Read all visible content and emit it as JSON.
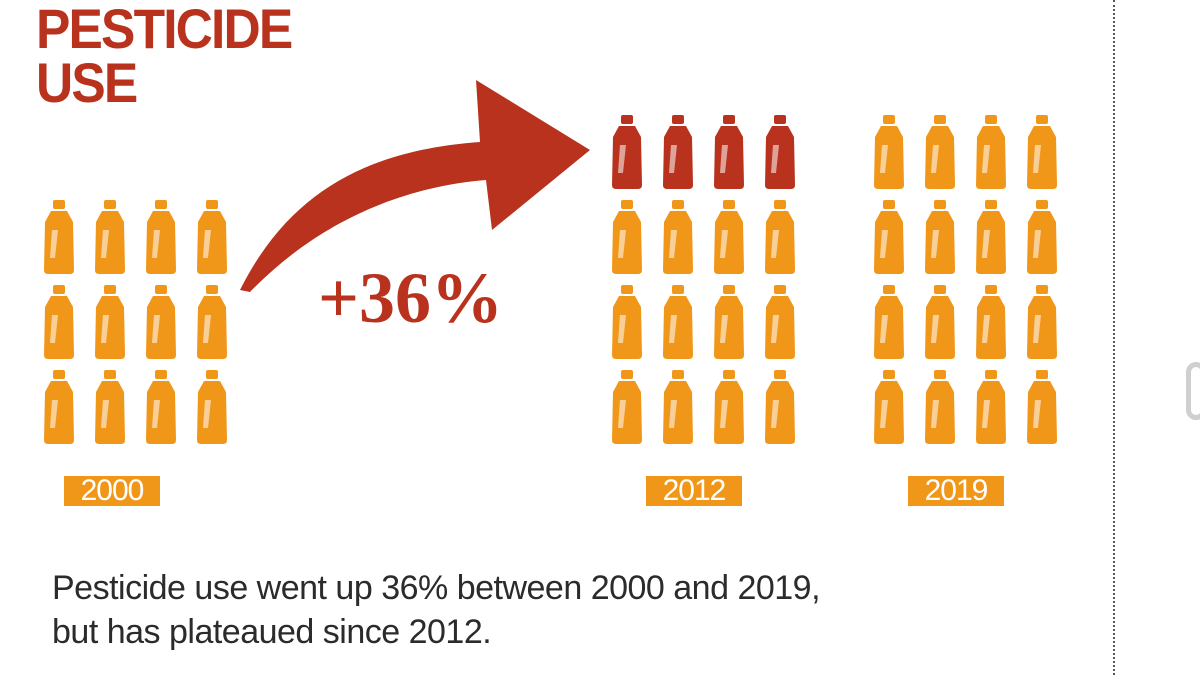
{
  "title": {
    "line1": "PESTICIDE",
    "line2": "USE"
  },
  "colors": {
    "base": "#f0971a",
    "increase": "#b8321e",
    "title": "#b8321e",
    "year_bg": "#f0971a"
  },
  "icon": "pesticide-bottle-icon",
  "change_label": "+36%",
  "caption": {
    "line1": "Pesticide use went up 36% between 2000 and 2019,",
    "line2": "but has plateaued since 2012."
  },
  "chart_data": {
    "type": "pictogram",
    "categories": [
      "2000",
      "2012",
      "2019"
    ],
    "values": [
      12,
      16,
      16
    ],
    "highlight_counts": [
      0,
      4,
      0
    ],
    "title": "PESTICIDE USE",
    "annotation": "+36%"
  }
}
